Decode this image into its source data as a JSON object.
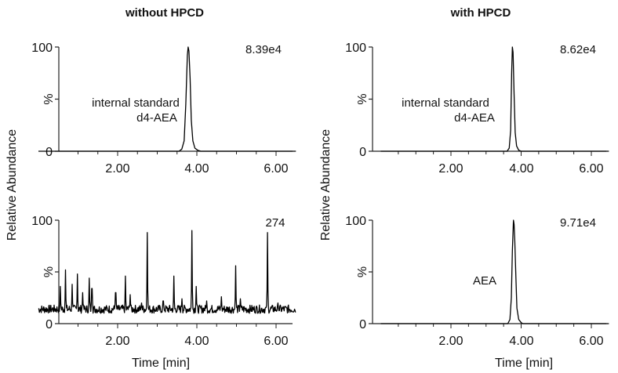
{
  "columns": [
    {
      "title": "without HPCD"
    },
    {
      "title": "with HPCD"
    }
  ],
  "ylabel": "Relative Abundance",
  "chart_data": [
    {
      "type": "line",
      "panel": "without HPCD - top",
      "xlim": [
        0,
        6.5
      ],
      "ylim": [
        0,
        100
      ],
      "xticks": [
        "2.00",
        "4.00",
        "6.00"
      ],
      "yticks": [
        "0",
        "%",
        "100"
      ],
      "xlabel": "",
      "intensity": "8.39e4",
      "annotation": [
        "internal standard",
        "d4-AEA"
      ],
      "baseline": 0,
      "peaks": [
        {
          "x": 3.78,
          "y": 100,
          "w": 0.05
        }
      ],
      "x": [
        0.0,
        3.55,
        3.62,
        3.68,
        3.72,
        3.76,
        3.78,
        3.8,
        3.83,
        3.86,
        3.9,
        3.95,
        4.02,
        4.1,
        6.5
      ],
      "y": [
        0,
        0,
        2,
        10,
        45,
        92,
        100,
        96,
        70,
        30,
        10,
        3,
        1,
        0,
        0
      ]
    },
    {
      "type": "line",
      "panel": "without HPCD - bottom",
      "xlim": [
        0,
        6.5
      ],
      "ylim": [
        0,
        100
      ],
      "xticks": [
        "2.00",
        "4.00",
        "6.00"
      ],
      "yticks": [
        "0",
        "%",
        "100"
      ],
      "xlabel": "Time [min]",
      "intensity": "274",
      "annotation": [],
      "baseline": 14,
      "peaks": [
        {
          "x": 0.55,
          "y": 36
        },
        {
          "x": 0.68,
          "y": 52
        },
        {
          "x": 0.85,
          "y": 38
        },
        {
          "x": 0.98,
          "y": 48
        },
        {
          "x": 1.12,
          "y": 30
        },
        {
          "x": 1.28,
          "y": 44
        },
        {
          "x": 1.35,
          "y": 34
        },
        {
          "x": 1.95,
          "y": 30
        },
        {
          "x": 2.2,
          "y": 46
        },
        {
          "x": 2.32,
          "y": 28
        },
        {
          "x": 2.6,
          "y": 20
        },
        {
          "x": 2.75,
          "y": 88
        },
        {
          "x": 3.15,
          "y": 22
        },
        {
          "x": 3.42,
          "y": 46
        },
        {
          "x": 3.62,
          "y": 24
        },
        {
          "x": 3.88,
          "y": 90
        },
        {
          "x": 3.98,
          "y": 36
        },
        {
          "x": 4.25,
          "y": 22
        },
        {
          "x": 4.62,
          "y": 26
        },
        {
          "x": 4.98,
          "y": 56
        },
        {
          "x": 5.1,
          "y": 24
        },
        {
          "x": 5.78,
          "y": 88
        },
        {
          "x": 6.05,
          "y": 20
        }
      ]
    },
    {
      "type": "line",
      "panel": "with HPCD - top",
      "xlim": [
        0,
        6.5
      ],
      "ylim": [
        0,
        100
      ],
      "xticks": [
        "2.00",
        "4.00",
        "6.00"
      ],
      "yticks": [
        "0",
        "%",
        "100"
      ],
      "xlabel": "",
      "intensity": "8.62e4",
      "annotation": [
        "internal standard",
        "d4-AEA"
      ],
      "baseline": 0,
      "x": [
        0.0,
        3.6,
        3.66,
        3.7,
        3.73,
        3.75,
        3.77,
        3.8,
        3.83,
        3.87,
        3.93,
        4.0,
        6.5
      ],
      "y": [
        0,
        0,
        3,
        20,
        75,
        100,
        95,
        55,
        18,
        5,
        1,
        0,
        0
      ]
    },
    {
      "type": "line",
      "panel": "with HPCD - bottom",
      "xlim": [
        0,
        6.5
      ],
      "ylim": [
        0,
        100
      ],
      "xticks": [
        "2.00",
        "4.00",
        "6.00"
      ],
      "yticks": [
        "0",
        "%",
        "100"
      ],
      "xlabel": "Time [min]",
      "intensity": "9.71e4",
      "annotation": [
        "AEA"
      ],
      "baseline": 0,
      "x": [
        0.0,
        3.62,
        3.68,
        3.72,
        3.75,
        3.78,
        3.8,
        3.82,
        3.85,
        3.88,
        3.93,
        4.0,
        4.05,
        6.5
      ],
      "y": [
        0,
        0,
        4,
        25,
        70,
        100,
        96,
        80,
        45,
        15,
        4,
        1,
        0,
        0
      ]
    }
  ]
}
